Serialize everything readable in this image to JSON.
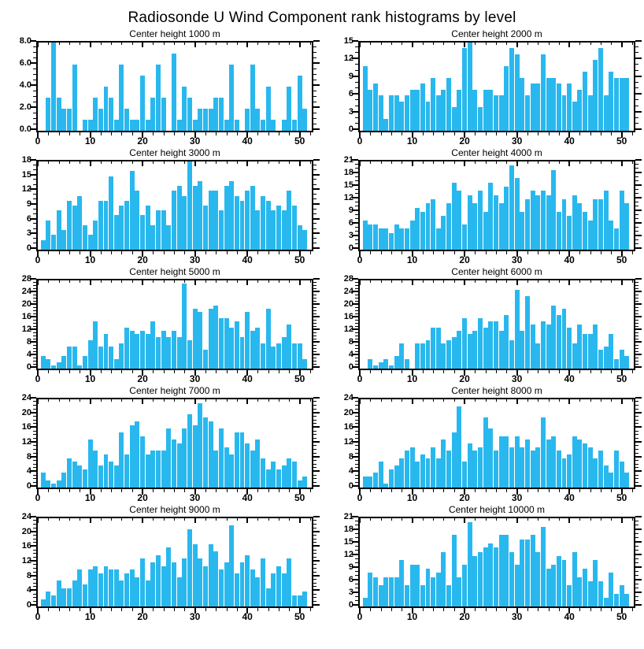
{
  "page_title": "Radiosonde U Wind Component rank histograms by level",
  "bar_color": "#29b8ee",
  "axis_color": "#000000",
  "chart_data": {
    "type": "bar",
    "layout": {
      "grid": false,
      "legend": "none",
      "columns": 2,
      "rows": 5,
      "x_tick_labels": [
        0,
        10,
        20,
        30,
        40,
        50
      ],
      "x_minor_step": 2,
      "xmax": 52.3,
      "bar_width_units": 0.9
    },
    "charts": [
      {
        "title": "Center height 1000 m",
        "ymax": 8,
        "ystep": 2,
        "ydecimals": 1,
        "yminor": 0.5,
        "values": [
          0,
          3,
          8,
          3,
          2,
          2,
          6,
          0,
          1,
          1,
          3,
          2,
          4,
          3,
          1,
          6,
          2,
          1,
          1,
          5,
          1,
          3,
          6,
          3,
          0,
          7,
          1,
          4,
          3,
          1,
          2,
          2,
          2,
          3,
          3,
          1,
          6,
          1,
          0,
          2,
          6,
          2,
          1,
          4,
          1,
          0,
          1,
          4,
          1,
          5,
          2
        ]
      },
      {
        "title": "Center height 2000 m",
        "ymax": 15,
        "ystep": 3,
        "ydecimals": 0,
        "yminor": 1,
        "values": [
          11,
          7,
          8,
          6,
          2,
          6,
          6,
          5,
          6,
          7,
          7,
          8,
          5,
          9,
          6,
          7,
          9,
          4,
          7,
          14,
          15,
          7,
          4,
          7,
          7,
          6,
          6,
          11,
          14,
          13,
          9,
          6,
          8,
          8,
          13,
          9,
          9,
          8,
          6,
          8,
          5,
          7,
          10,
          6,
          12,
          14,
          6,
          10,
          9,
          9,
          9
        ]
      },
      {
        "title": "Center height 3000 m",
        "ymax": 18,
        "ystep": 3,
        "ydecimals": 0,
        "yminor": 1,
        "values": [
          2,
          6,
          3,
          8,
          4,
          10,
          9,
          11,
          5,
          3,
          6,
          10,
          10,
          15,
          7,
          9,
          10,
          16,
          12,
          7,
          9,
          5,
          8,
          8,
          5,
          12,
          13,
          11,
          18,
          13,
          14,
          9,
          12,
          12,
          8,
          13,
          14,
          11,
          10,
          12,
          13,
          8,
          11,
          10,
          8,
          9,
          8,
          12,
          9,
          5,
          4
        ]
      },
      {
        "title": "Center height 4000 m",
        "ymax": 21,
        "ystep": 3,
        "ydecimals": 0,
        "yminor": 1,
        "values": [
          7,
          6,
          6,
          5,
          5,
          4,
          6,
          5,
          5,
          7,
          10,
          9,
          11,
          12,
          5,
          8,
          11,
          16,
          14,
          6,
          13,
          11,
          14,
          9,
          16,
          13,
          11,
          15,
          20,
          17,
          9,
          12,
          14,
          13,
          14,
          13,
          19,
          9,
          12,
          8,
          13,
          11,
          9,
          7,
          12,
          12,
          14,
          7,
          5,
          14,
          11
        ]
      },
      {
        "title": "Center height 5000 m",
        "ymax": 28,
        "ystep": 4,
        "ydecimals": 0,
        "yminor": 1,
        "values": [
          4,
          3,
          1,
          2,
          4,
          7,
          7,
          1,
          4,
          9,
          15,
          7,
          11,
          7,
          3,
          8,
          13,
          12,
          11,
          12,
          11,
          15,
          10,
          12,
          10,
          12,
          10,
          27,
          9,
          19,
          18,
          6,
          19,
          20,
          16,
          16,
          13,
          15,
          10,
          18,
          12,
          13,
          8,
          19,
          7,
          8,
          10,
          14,
          8,
          8,
          3
        ]
      },
      {
        "title": "Center height 6000 m",
        "ymax": 28,
        "ystep": 4,
        "ydecimals": 0,
        "yminor": 1,
        "values": [
          0,
          3,
          1,
          2,
          3,
          1,
          4,
          8,
          3,
          0,
          8,
          8,
          9,
          13,
          13,
          8,
          9,
          10,
          12,
          16,
          11,
          12,
          16,
          13,
          15,
          15,
          12,
          17,
          9,
          25,
          12,
          23,
          14,
          8,
          15,
          14,
          20,
          17,
          19,
          13,
          8,
          14,
          11,
          11,
          14,
          6,
          7,
          11,
          3,
          6,
          4
        ]
      },
      {
        "title": "Center height 7000 m",
        "ymax": 24,
        "ystep": 4,
        "ydecimals": 0,
        "yminor": 1,
        "values": [
          4,
          2,
          1,
          2,
          4,
          8,
          7,
          6,
          5,
          13,
          10,
          6,
          9,
          7,
          6,
          15,
          9,
          17,
          18,
          14,
          9,
          10,
          10,
          10,
          16,
          13,
          12,
          16,
          20,
          17,
          23,
          19,
          18,
          10,
          16,
          11,
          9,
          15,
          15,
          12,
          10,
          13,
          8,
          5,
          7,
          5,
          6,
          8,
          7,
          2,
          3
        ]
      },
      {
        "title": "Center height 8000 m",
        "ymax": 24,
        "ystep": 4,
        "ydecimals": 0,
        "yminor": 1,
        "values": [
          3,
          3,
          4,
          7,
          1,
          5,
          6,
          8,
          10,
          11,
          7,
          9,
          8,
          11,
          8,
          13,
          10,
          15,
          22,
          7,
          12,
          10,
          11,
          19,
          16,
          10,
          14,
          14,
          11,
          14,
          11,
          13,
          10,
          11,
          19,
          13,
          14,
          10,
          8,
          9,
          14,
          13,
          12,
          11,
          8,
          10,
          6,
          4,
          10,
          7,
          4
        ]
      },
      {
        "title": "Center height 9000 m",
        "ymax": 24,
        "ystep": 4,
        "ydecimals": 0,
        "yminor": 1,
        "values": [
          2,
          4,
          3,
          7,
          5,
          5,
          7,
          10,
          6,
          10,
          11,
          9,
          11,
          10,
          10,
          7,
          9,
          10,
          8,
          13,
          7,
          12,
          14,
          11,
          16,
          12,
          8,
          13,
          21,
          17,
          13,
          11,
          17,
          15,
          10,
          12,
          22,
          9,
          12,
          14,
          10,
          8,
          13,
          5,
          9,
          11,
          9,
          13,
          3,
          3,
          4
        ]
      },
      {
        "title": "Center height 10000 m",
        "ymax": 21,
        "ystep": 3,
        "ydecimals": 0,
        "yminor": 1,
        "values": [
          2,
          8,
          7,
          5,
          7,
          7,
          7,
          11,
          5,
          10,
          10,
          5,
          9,
          7,
          8,
          13,
          5,
          17,
          7,
          10,
          20,
          12,
          13,
          14,
          15,
          14,
          17,
          17,
          13,
          10,
          16,
          16,
          17,
          13,
          19,
          9,
          10,
          12,
          11,
          5,
          13,
          7,
          9,
          6,
          11,
          6,
          2,
          8,
          3,
          5,
          3
        ]
      }
    ]
  }
}
